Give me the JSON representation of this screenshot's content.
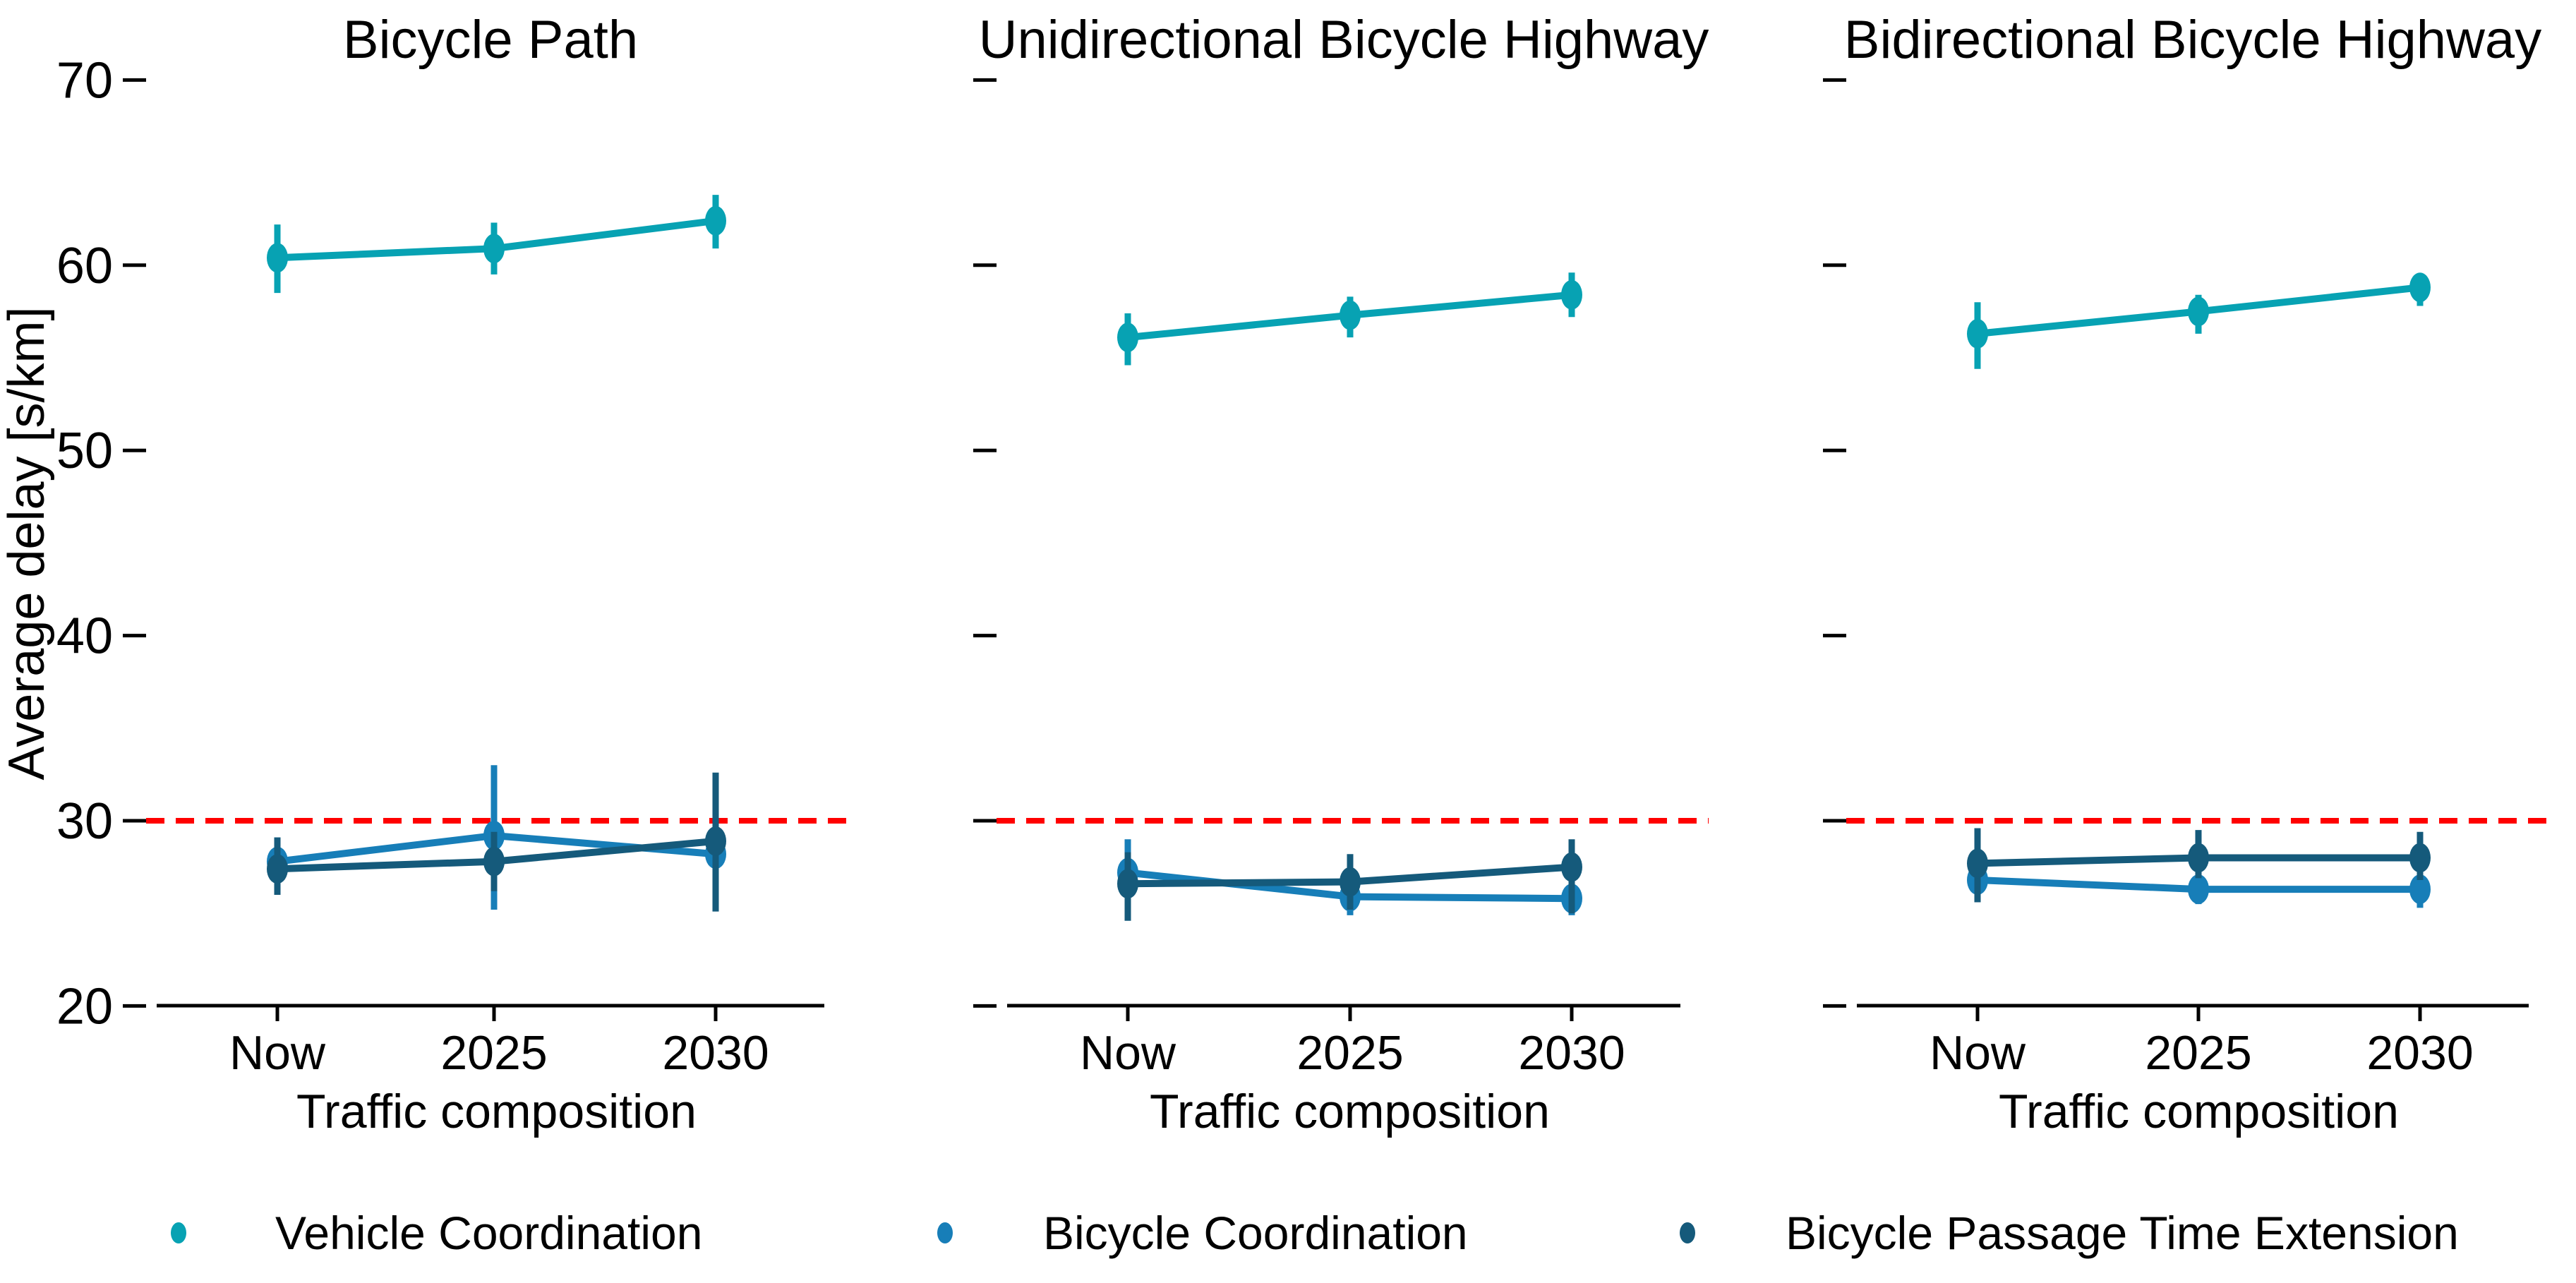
{
  "chart_data": {
    "type": "line",
    "ylabel": "Average delay  [s/km]",
    "xlabel": "Traffic composition",
    "categories": [
      "Now",
      "2025",
      "2030"
    ],
    "y_ticks": [
      20,
      30,
      40,
      50,
      60,
      70
    ],
    "ylim": [
      20,
      72
    ],
    "grid": false,
    "marker": "ellipse-dot",
    "error_bars": true,
    "reference_line": {
      "value": 30,
      "color": "#ff0000",
      "style": "dashed"
    },
    "legend": {
      "position": "bottom",
      "entries": [
        {
          "label": "Vehicle Coordination",
          "color": "#07a2b3"
        },
        {
          "label": "Bicycle Coordination",
          "color": "#177eb8"
        },
        {
          "label": "Bicycle Passage Time Extension",
          "color": "#155a7b"
        }
      ]
    },
    "panels": [
      {
        "title": "Bicycle Path",
        "series": [
          {
            "name": "Vehicle Coordination",
            "color": "#07a2b3",
            "points": [
              {
                "x": "Now",
                "y": 60.4,
                "lo": 58.5,
                "hi": 62.2
              },
              {
                "x": "2025",
                "y": 60.9,
                "lo": 59.5,
                "hi": 62.3
              },
              {
                "x": "2030",
                "y": 62.4,
                "lo": 60.9,
                "hi": 63.8
              }
            ]
          },
          {
            "name": "Bicycle Coordination",
            "color": "#177eb8",
            "points": [
              {
                "x": "Now",
                "y": 27.8,
                "lo": 26.4,
                "hi": 29.1
              },
              {
                "x": "2025",
                "y": 29.2,
                "lo": 25.2,
                "hi": 33.0
              },
              {
                "x": "2030",
                "y": 28.2,
                "lo": 26.4,
                "hi": 29.6
              }
            ]
          },
          {
            "name": "Bicycle Passage Time Extension",
            "color": "#155a7b",
            "points": [
              {
                "x": "Now",
                "y": 27.4,
                "lo": 26.0,
                "hi": 29.1
              },
              {
                "x": "2025",
                "y": 27.8,
                "lo": 26.2,
                "hi": 29.4
              },
              {
                "x": "2030",
                "y": 28.9,
                "lo": 25.1,
                "hi": 32.6
              }
            ]
          }
        ]
      },
      {
        "title": "Unidirectional Bicycle Highway",
        "series": [
          {
            "name": "Vehicle Coordination",
            "color": "#07a2b3",
            "points": [
              {
                "x": "Now",
                "y": 56.1,
                "lo": 54.6,
                "hi": 57.4
              },
              {
                "x": "2025",
                "y": 57.3,
                "lo": 56.1,
                "hi": 58.3
              },
              {
                "x": "2030",
                "y": 58.4,
                "lo": 57.2,
                "hi": 59.6
              }
            ]
          },
          {
            "name": "Bicycle Coordination",
            "color": "#177eb8",
            "points": [
              {
                "x": "Now",
                "y": 27.2,
                "lo": 25.7,
                "hi": 29.0
              },
              {
                "x": "2025",
                "y": 25.9,
                "lo": 24.9,
                "hi": 26.9
              },
              {
                "x": "2030",
                "y": 25.8,
                "lo": 24.9,
                "hi": 26.8
              }
            ]
          },
          {
            "name": "Bicycle Passage Time Extension",
            "color": "#155a7b",
            "points": [
              {
                "x": "Now",
                "y": 26.6,
                "lo": 24.6,
                "hi": 28.3
              },
              {
                "x": "2025",
                "y": 26.7,
                "lo": 25.2,
                "hi": 28.2
              },
              {
                "x": "2030",
                "y": 27.5,
                "lo": 25.0,
                "hi": 29.0
              }
            ]
          }
        ]
      },
      {
        "title": "Bidirectional Bicycle Highway",
        "series": [
          {
            "name": "Vehicle Coordination",
            "color": "#07a2b3",
            "points": [
              {
                "x": "Now",
                "y": 56.3,
                "lo": 54.4,
                "hi": 58.0
              },
              {
                "x": "2025",
                "y": 57.5,
                "lo": 56.3,
                "hi": 58.4
              },
              {
                "x": "2030",
                "y": 58.8,
                "lo": 57.8,
                "hi": 59.5
              }
            ]
          },
          {
            "name": "Bicycle Coordination",
            "color": "#177eb8",
            "points": [
              {
                "x": "Now",
                "y": 26.8,
                "lo": 25.6,
                "hi": 28.0
              },
              {
                "x": "2025",
                "y": 26.3,
                "lo": 25.5,
                "hi": 27.0
              },
              {
                "x": "2030",
                "y": 26.3,
                "lo": 25.3,
                "hi": 27.1
              }
            ]
          },
          {
            "name": "Bicycle Passage Time Extension",
            "color": "#155a7b",
            "points": [
              {
                "x": "Now",
                "y": 27.7,
                "lo": 25.6,
                "hi": 29.6
              },
              {
                "x": "2025",
                "y": 28.0,
                "lo": 26.9,
                "hi": 29.5
              },
              {
                "x": "2030",
                "y": 28.0,
                "lo": 26.8,
                "hi": 29.4
              }
            ]
          }
        ]
      }
    ]
  }
}
